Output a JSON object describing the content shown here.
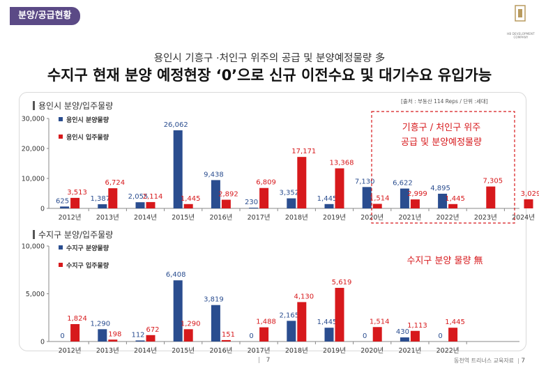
{
  "header": {
    "tag": "분양/공급현황",
    "subtitle": "용인시 기흥구 ·처인구 위주의 공급 및 분양예정물량 多",
    "headline": "수지구 현재 분양 예정현장 ‘0’으로 신규 이전수요 및 대기수요 유입가능",
    "logo_text": "HB DEVELOPMENT COMPANY"
  },
  "source_note": "[출처 : 부동산 114 Reps / 단위 :세대]",
  "colors": {
    "blue": "#2a4d8f",
    "red": "#d7191c",
    "accent": "#5b4a86"
  },
  "footer": {
    "page": "7",
    "right_text": "동천역 트리너스 교육자료"
  },
  "chart_data": [
    {
      "type": "bar",
      "title": "용인시 분양/입주물량",
      "categories": [
        "2012년",
        "2013년",
        "2014년",
        "2015년",
        "2016년",
        "2017년",
        "2018년",
        "2019년",
        "2020년",
        "2021년",
        "2022년",
        "2023년",
        "2024년"
      ],
      "series": [
        {
          "name": "용인시 분양물량",
          "color": "#2a4d8f",
          "values": [
            625,
            1387,
            2055,
            26062,
            9438,
            230,
            3352,
            1445,
            7130,
            6622,
            4895,
            null,
            null
          ]
        },
        {
          "name": "용인시 입주물량",
          "color": "#d7191c",
          "values": [
            3513,
            6724,
            2114,
            1445,
            2892,
            6809,
            17171,
            13368,
            1514,
            2999,
            1445,
            7305,
            3029
          ]
        }
      ],
      "yticks": [
        "0",
        "10,000",
        "20,000",
        "30,000"
      ],
      "ylim": [
        0,
        30000
      ],
      "annotation": "기흥구 / 처인구 위주\n공급 및 분양예정물량"
    },
    {
      "type": "bar",
      "title": "수지구 분양/입주물량",
      "categories": [
        "2012년",
        "2013년",
        "2014년",
        "2015년",
        "2016년",
        "2017년",
        "2018년",
        "2019년",
        "2020년",
        "2021년",
        "2022년"
      ],
      "series": [
        {
          "name": "수지구 분양물량",
          "color": "#2a4d8f",
          "values": [
            0,
            1290,
            112,
            6408,
            3819,
            0,
            2165,
            1445,
            0,
            430,
            0
          ]
        },
        {
          "name": "수지구 입주물량",
          "color": "#d7191c",
          "values": [
            1824,
            198,
            672,
            1290,
            151,
            1488,
            4130,
            5619,
            1514,
            1113,
            1445
          ]
        }
      ],
      "yticks": [
        "0",
        "5,000",
        "10,000"
      ],
      "ylim": [
        0,
        10000
      ],
      "annotation": "수지구 분양 물량 無"
    }
  ]
}
